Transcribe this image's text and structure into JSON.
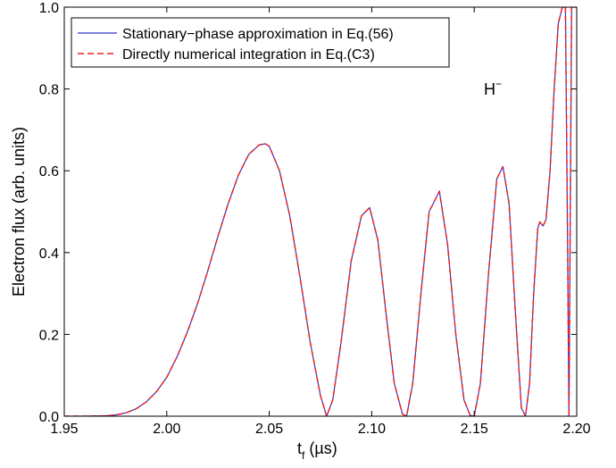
{
  "chart_data": {
    "type": "line",
    "title": "",
    "xlabel": "t",
    "xlabel_sub": "f",
    "xlabel_unit": " (µs)",
    "ylabel": "Electron flux (arb. units)",
    "xlim": [
      1.95,
      2.2
    ],
    "ylim": [
      0.0,
      1.0
    ],
    "x_ticks": [
      1.95,
      2.0,
      2.05,
      2.1,
      2.15,
      2.2
    ],
    "x_tick_labels": [
      "1.95",
      "2.00",
      "2.05",
      "2.10",
      "2.15",
      "2.20"
    ],
    "y_ticks": [
      0.0,
      0.2,
      0.4,
      0.6,
      0.8,
      1.0
    ],
    "y_tick_labels": [
      "0.0",
      "0.2",
      "0.4",
      "0.6",
      "0.8",
      "1.0"
    ],
    "grid": false,
    "legend_position": "top-left",
    "annotation": {
      "text": "H",
      "sup": "−"
    },
    "series": [
      {
        "name": "Stationary−phase approximation in Eq.(56)",
        "color": "#3333cc",
        "style": "solid",
        "x": [
          1.95,
          1.96,
          1.97,
          1.975,
          1.98,
          1.985,
          1.99,
          1.995,
          2.0,
          2.005,
          2.01,
          2.015,
          2.02,
          2.025,
          2.03,
          2.035,
          2.04,
          2.045,
          2.048,
          2.05,
          2.055,
          2.06,
          2.065,
          2.07,
          2.075,
          2.078,
          2.081,
          2.085,
          2.09,
          2.095,
          2.099,
          2.103,
          2.107,
          2.111,
          2.115,
          2.117,
          2.12,
          2.124,
          2.128,
          2.133,
          2.137,
          2.141,
          2.145,
          2.148,
          2.15,
          2.153,
          2.157,
          2.161,
          2.164,
          2.167,
          2.17,
          2.173,
          2.175,
          2.177,
          2.179,
          2.181,
          2.182,
          2.1835,
          2.185,
          2.187,
          2.189,
          2.191,
          2.193,
          2.1945,
          2.1955,
          2.1962,
          2.1968,
          2.1975,
          2.1985,
          2.2
        ],
        "y": [
          0.0,
          0.0,
          0.001,
          0.003,
          0.008,
          0.018,
          0.035,
          0.06,
          0.095,
          0.145,
          0.205,
          0.275,
          0.355,
          0.44,
          0.52,
          0.59,
          0.64,
          0.663,
          0.666,
          0.66,
          0.6,
          0.49,
          0.34,
          0.18,
          0.05,
          0.0,
          0.04,
          0.18,
          0.38,
          0.49,
          0.51,
          0.43,
          0.25,
          0.08,
          0.005,
          0.0,
          0.08,
          0.3,
          0.5,
          0.55,
          0.42,
          0.2,
          0.04,
          0.002,
          0.0,
          0.08,
          0.35,
          0.58,
          0.61,
          0.52,
          0.26,
          0.02,
          0.0,
          0.08,
          0.3,
          0.46,
          0.475,
          0.465,
          0.48,
          0.6,
          0.8,
          0.96,
          1.0,
          1.0,
          0.45,
          0.0,
          0.45,
          1.0,
          1.0,
          1.0
        ]
      },
      {
        "name": "Directly numerical integration in Eq.(C3)",
        "color": "#ee2222",
        "style": "dashed",
        "x": [
          1.95,
          1.96,
          1.97,
          1.975,
          1.98,
          1.985,
          1.99,
          1.995,
          2.0,
          2.005,
          2.01,
          2.015,
          2.02,
          2.025,
          2.03,
          2.035,
          2.04,
          2.045,
          2.048,
          2.05,
          2.055,
          2.06,
          2.065,
          2.07,
          2.075,
          2.078,
          2.081,
          2.085,
          2.09,
          2.095,
          2.099,
          2.103,
          2.107,
          2.111,
          2.115,
          2.117,
          2.12,
          2.124,
          2.128,
          2.133,
          2.137,
          2.141,
          2.145,
          2.148,
          2.15,
          2.153,
          2.157,
          2.161,
          2.164,
          2.167,
          2.17,
          2.173,
          2.175,
          2.177,
          2.179,
          2.181,
          2.182,
          2.1835,
          2.185,
          2.187,
          2.189,
          2.191,
          2.193,
          2.1945,
          2.1955,
          2.1962,
          2.1968,
          2.1975,
          2.1985,
          2.2
        ],
        "y": [
          0.0,
          0.0,
          0.001,
          0.003,
          0.008,
          0.018,
          0.035,
          0.06,
          0.095,
          0.145,
          0.205,
          0.275,
          0.355,
          0.44,
          0.52,
          0.59,
          0.64,
          0.663,
          0.666,
          0.66,
          0.6,
          0.49,
          0.34,
          0.18,
          0.05,
          0.0,
          0.04,
          0.18,
          0.38,
          0.49,
          0.51,
          0.43,
          0.25,
          0.08,
          0.005,
          0.0,
          0.08,
          0.3,
          0.5,
          0.55,
          0.42,
          0.2,
          0.04,
          0.002,
          0.0,
          0.08,
          0.35,
          0.58,
          0.61,
          0.52,
          0.26,
          0.02,
          0.0,
          0.08,
          0.3,
          0.46,
          0.475,
          0.465,
          0.48,
          0.6,
          0.8,
          0.96,
          1.0,
          1.0,
          0.45,
          0.0,
          0.45,
          1.0,
          1.0,
          1.0
        ]
      }
    ]
  }
}
